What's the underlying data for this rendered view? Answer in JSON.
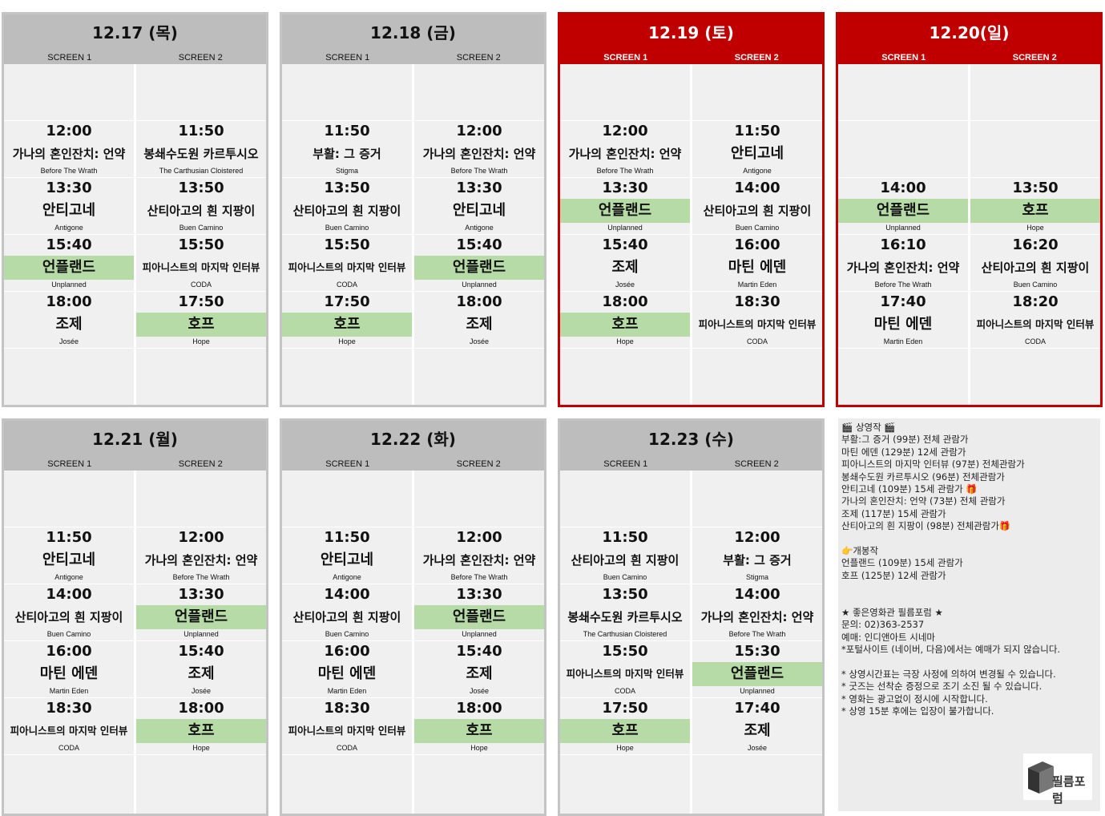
{
  "screen_labels": [
    "SCREEN 1",
    "SCREEN 2"
  ],
  "colors": {
    "weekday_header": "#bdbdbd",
    "weekend_header": "#c00000",
    "highlight": "#b7dba7",
    "cell_bg": "#f0f0f0"
  },
  "days": [
    {
      "date": "12.17 (목)",
      "weekend": false,
      "screen1": [
        {
          "slot": 1,
          "time": "12:00",
          "title": "가나의 혼인잔치: 언약",
          "original": "Before The Wrath"
        },
        {
          "slot": 2,
          "time": "13:30",
          "title": "안티고네",
          "original": "Antigone"
        },
        {
          "slot": 3,
          "time": "15:40",
          "title": "언플랜드",
          "original": "Unplanned",
          "highlight": true
        },
        {
          "slot": 4,
          "time": "18:00",
          "title": "조제",
          "original": "Josée"
        }
      ],
      "screen2": [
        {
          "slot": 1,
          "time": "11:50",
          "title": "봉쇄수도원 카르투시오",
          "original": "The Carthusian Cloistered"
        },
        {
          "slot": 2,
          "time": "13:50",
          "title": "산티아고의 흰 지팡이",
          "original": "Buen Camino"
        },
        {
          "slot": 3,
          "time": "15:50",
          "title": "피아니스트의 마지막 인터뷰",
          "original": "CODA"
        },
        {
          "slot": 4,
          "time": "17:50",
          "title": "호프",
          "original": "Hope",
          "highlight": true
        }
      ]
    },
    {
      "date": "12.18 (금)",
      "weekend": false,
      "screen1": [
        {
          "slot": 1,
          "time": "11:50",
          "title": "부활: 그 증거",
          "original": "Stigma"
        },
        {
          "slot": 2,
          "time": "13:50",
          "title": "산티아고의 흰 지팡이",
          "original": "Buen Camino"
        },
        {
          "slot": 3,
          "time": "15:50",
          "title": "피아니스트의 마지막 인터뷰",
          "original": "CODA"
        },
        {
          "slot": 4,
          "time": "17:50",
          "title": "호프",
          "original": "Hope",
          "highlight": true
        }
      ],
      "screen2": [
        {
          "slot": 1,
          "time": "12:00",
          "title": "가나의 혼인잔치: 언약",
          "original": "Before The Wrath"
        },
        {
          "slot": 2,
          "time": "13:30",
          "title": "안티고네",
          "original": "Antigone"
        },
        {
          "slot": 3,
          "time": "15:40",
          "title": "언플랜드",
          "original": "Unplanned",
          "highlight": true
        },
        {
          "slot": 4,
          "time": "18:00",
          "title": "조제",
          "original": "Josée"
        }
      ]
    },
    {
      "date": "12.19 (토)",
      "weekend": true,
      "screen1": [
        {
          "slot": 1,
          "time": "12:00",
          "title": "가나의 혼인잔치: 언약",
          "original": "Before The Wrath"
        },
        {
          "slot": 2,
          "time": "13:30",
          "title": "언플랜드",
          "original": "Unplanned",
          "highlight": true
        },
        {
          "slot": 3,
          "time": "15:40",
          "title": "조제",
          "original": "Josée"
        },
        {
          "slot": 4,
          "time": "18:00",
          "title": "호프",
          "original": "Hope",
          "highlight": true
        }
      ],
      "screen2": [
        {
          "slot": 1,
          "time": "11:50",
          "title": "안티고네",
          "original": "Antigone"
        },
        {
          "slot": 2,
          "time": "14:00",
          "title": "산티아고의 흰 지팡이",
          "original": "Buen Camino"
        },
        {
          "slot": 3,
          "time": "16:00",
          "title": "마틴 에덴",
          "original": "Martin Eden"
        },
        {
          "slot": 4,
          "time": "18:30",
          "title": "피아니스트의 마지막 인터뷰",
          "original": "CODA"
        }
      ]
    },
    {
      "date": "12.20(일)",
      "weekend": true,
      "screen1": [
        {
          "slot": 2,
          "time": "14:00",
          "title": "언플랜드",
          "original": "Unplanned",
          "highlight": true
        },
        {
          "slot": 3,
          "time": "16:10",
          "title": "가나의 혼인잔치: 언약",
          "original": "Before The Wrath"
        },
        {
          "slot": 4,
          "time": "17:40",
          "title": "마틴 에덴",
          "original": "Martin Eden"
        }
      ],
      "screen2": [
        {
          "slot": 2,
          "time": "13:50",
          "title": "호프",
          "original": "Hope",
          "highlight": true
        },
        {
          "slot": 3,
          "time": "16:20",
          "title": "산티아고의 흰 지팡이",
          "original": "Buen Camino"
        },
        {
          "slot": 4,
          "time": "18:20",
          "title": "피아니스트의 마지막 인터뷰",
          "original": "CODA"
        }
      ]
    },
    {
      "date": "12.21 (월)",
      "weekend": false,
      "screen1": [
        {
          "slot": 1,
          "time": "11:50",
          "title": "안티고네",
          "original": "Antigone"
        },
        {
          "slot": 2,
          "time": "14:00",
          "title": "산티아고의 흰 지팡이",
          "original": "Buen Camino"
        },
        {
          "slot": 3,
          "time": "16:00",
          "title": "마틴 에덴",
          "original": "Martin Eden"
        },
        {
          "slot": 4,
          "time": "18:30",
          "title": "피아니스트의 마지막 인터뷰",
          "original": "CODA"
        }
      ],
      "screen2": [
        {
          "slot": 1,
          "time": "12:00",
          "title": "가나의 혼인잔치: 언약",
          "original": "Before The Wrath"
        },
        {
          "slot": 2,
          "time": "13:30",
          "title": "언플랜드",
          "original": "Unplanned",
          "highlight": true
        },
        {
          "slot": 3,
          "time": "15:40",
          "title": "조제",
          "original": "Josée"
        },
        {
          "slot": 4,
          "time": "18:00",
          "title": "호프",
          "original": "Hope",
          "highlight": true
        }
      ]
    },
    {
      "date": "12.22 (화)",
      "weekend": false,
      "screen1": [
        {
          "slot": 1,
          "time": "11:50",
          "title": "안티고네",
          "original": "Antigone"
        },
        {
          "slot": 2,
          "time": "14:00",
          "title": "산티아고의 흰 지팡이",
          "original": "Buen Camino"
        },
        {
          "slot": 3,
          "time": "16:00",
          "title": "마틴 에덴",
          "original": "Martin Eden"
        },
        {
          "slot": 4,
          "time": "18:30",
          "title": "피아니스트의 마지막 인터뷰",
          "original": "CODA"
        }
      ],
      "screen2": [
        {
          "slot": 1,
          "time": "12:00",
          "title": "가나의 혼인잔치: 언약",
          "original": "Before The Wrath"
        },
        {
          "slot": 2,
          "time": "13:30",
          "title": "언플랜드",
          "original": "Unplanned",
          "highlight": true
        },
        {
          "slot": 3,
          "time": "15:40",
          "title": "조제",
          "original": "Josée"
        },
        {
          "slot": 4,
          "time": "18:00",
          "title": "호프",
          "original": "Hope",
          "highlight": true
        }
      ]
    },
    {
      "date": "12.23 (수)",
      "weekend": false,
      "screen1": [
        {
          "slot": 1,
          "time": "11:50",
          "title": "산티아고의 흰 지팡이",
          "original": "Buen Camino"
        },
        {
          "slot": 2,
          "time": "13:50",
          "title": "봉쇄수도원 카르투시오",
          "original": "The Carthusian Cloistered"
        },
        {
          "slot": 3,
          "time": "15:50",
          "title": "피아니스트의 마지막 인터뷰",
          "original": "CODA"
        },
        {
          "slot": 4,
          "time": "17:50",
          "title": "호프",
          "original": "Hope",
          "highlight": true
        }
      ],
      "screen2": [
        {
          "slot": 1,
          "time": "12:00",
          "title": "부활: 그 증거",
          "original": "Stigma"
        },
        {
          "slot": 2,
          "time": "14:00",
          "title": "가나의 혼인잔치: 언약",
          "original": "Before The Wrath"
        },
        {
          "slot": 3,
          "time": "15:30",
          "title": "언플랜드",
          "original": "Unplanned",
          "highlight": true
        },
        {
          "slot": 4,
          "time": "17:40",
          "title": "조제",
          "original": "Josée"
        }
      ]
    }
  ],
  "info": {
    "lines": [
      "🎬 상영작 🎬",
      "부활:그 증거 (99분) 전체 관람가",
      "마틴 에덴 (129분) 12세 관람가",
      "피아니스트의 마지막 인터뷰 (97분) 전체관람가",
      "봉쇄수도원 카르투시오 (96분) 전체관람가",
      "안티고네 (109분) 15세 관람가 🎁",
      "가나의 혼인잔치: 언약 (73분) 전체 관람가",
      "조제 (117분) 15세 관람가",
      "산티아고의 흰 지팡이 (98분) 전체관람가🎁",
      "",
      "👉개봉작",
      "언플랜드 (109분) 15세 관람가",
      "호프 (125분) 12세 관람가",
      "",
      "",
      "★ 좋은영화관 필름포럼 ★",
      "문의: 02)363-2537",
      "예매: 인디앤아트 시네마",
      "*포털사이트 (네이버, 다음)에서는 예매가 되지 않습니다.",
      "",
      "* 상영시간표는 극장 사정에 의하여 변경될 수 있습니다.",
      "* 굿즈는 선착순 증정으로 조기 소진 될 수 있습니다.",
      "* 영화는 광고없이 정시에 시작합니다.",
      "* 상영 15분 후에는 입장이 불가합니다."
    ],
    "logo_text": "필름포럼"
  }
}
